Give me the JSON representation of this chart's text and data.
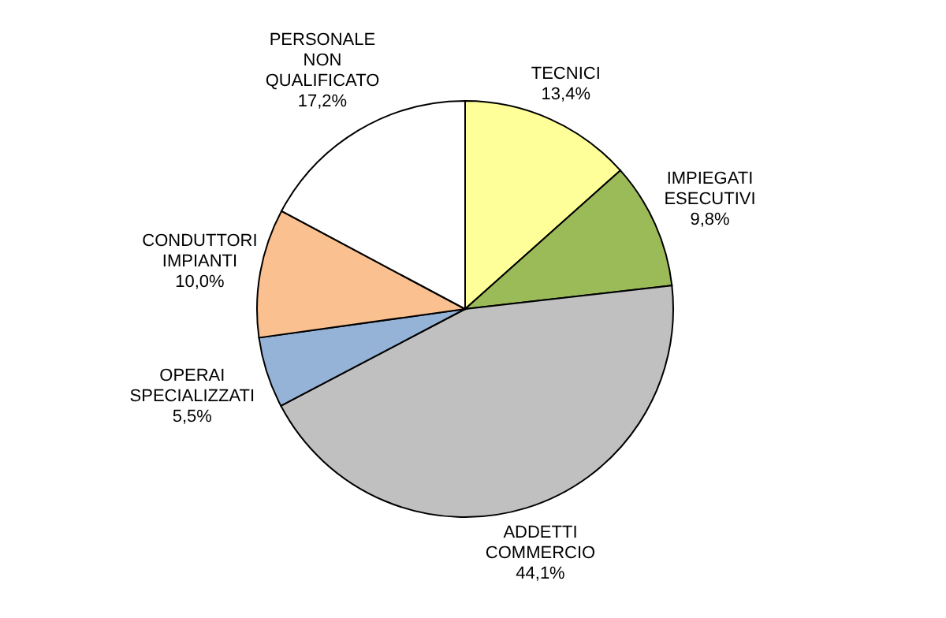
{
  "chart_data": {
    "type": "pie",
    "categories": [
      "TECNICI",
      "IMPIEGATI\nESECUTIVI",
      "ADDETTI\nCOMMERCIO",
      "OPERAI\nSPECIALIZZATI",
      "CONDUTTORI\nIMPIANTI",
      "PERSONALE\nNON\nQUALIFICATO"
    ],
    "values": [
      13.4,
      9.8,
      44.1,
      5.5,
      10.0,
      17.2
    ],
    "colors": [
      "#ffff99",
      "#9bbb59",
      "#c0c0c0",
      "#95b3d7",
      "#fac090",
      "#ffffff"
    ],
    "value_labels": [
      "13,4%",
      "9,8%",
      "44,1%",
      "5,5%",
      "10,0%",
      "17,2%"
    ]
  }
}
